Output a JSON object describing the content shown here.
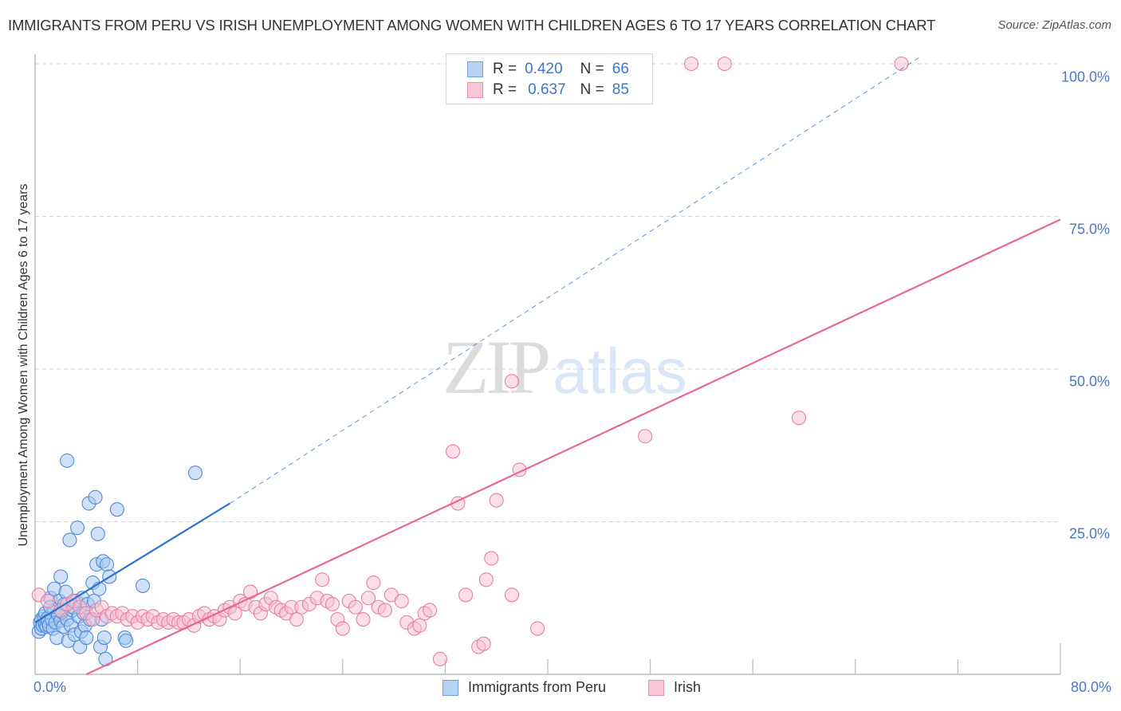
{
  "header": {
    "title": "IMMIGRANTS FROM PERU VS IRISH UNEMPLOYMENT AMONG WOMEN WITH CHILDREN AGES 6 TO 17 YEARS CORRELATION CHART",
    "source": "Source: ZipAtlas.com"
  },
  "watermark": {
    "zip": "ZIP",
    "atlas": "atlas"
  },
  "axes": {
    "ylabel": "Unemployment Among Women with Children Ages 6 to 17 years",
    "y_ticks": [
      "100.0%",
      "75.0%",
      "50.0%",
      "25.0%"
    ],
    "x_ticks": [
      "0.0%",
      "80.0%"
    ]
  },
  "legend": {
    "rows": [
      {
        "r_label": "R =",
        "r_value": "0.420",
        "n_label": "N =",
        "n_value": "66"
      },
      {
        "r_label": "R =",
        "r_value": "0.637",
        "n_label": "N =",
        "n_value": "85"
      }
    ]
  },
  "bottom_legend": {
    "series": [
      {
        "label": "Immigrants from Peru"
      },
      {
        "label": "Irish"
      }
    ]
  },
  "colors": {
    "peru_fill": "#a9c8f0",
    "peru_stroke": "#4f8bd6",
    "peru_line": "#2f73d0",
    "irish_fill": "#f7bfd2",
    "irish_stroke": "#e77fa2",
    "irish_line": "#e86890",
    "tick_label": "#4a78c9",
    "grid": "#d6d6d6"
  },
  "chart_data": {
    "type": "scatter",
    "title": "Immigrants from Peru vs Irish Unemployment Among Women with Children Ages 6 to 17 years Correlation Chart",
    "xlabel": "",
    "ylabel": "Unemployment Among Women with Children Ages 6 to 17 years",
    "xlim": [
      0,
      80
    ],
    "ylim": [
      0,
      100
    ],
    "x_unit": "%",
    "y_unit": "%",
    "grid": {
      "horizontal": true,
      "style": "dashed",
      "y_values": [
        25,
        50,
        75,
        100
      ]
    },
    "legend_position": "top-center (stats) and bottom (series names)",
    "series": [
      {
        "name": "Immigrants from Peru",
        "r": 0.42,
        "n": 66,
        "trend": {
          "x0": 0,
          "y0": 8.5,
          "x1": 15.2,
          "y1": 28.0,
          "dashed_extension_to": [
            69,
            100
          ]
        },
        "points": [
          [
            0.3,
            7.0
          ],
          [
            0.4,
            8.5
          ],
          [
            0.5,
            9.0
          ],
          [
            0.5,
            7.5
          ],
          [
            0.6,
            8.0
          ],
          [
            0.7,
            9.5
          ],
          [
            0.8,
            10.0
          ],
          [
            0.8,
            8.2
          ],
          [
            0.9,
            7.8
          ],
          [
            1.0,
            9.2
          ],
          [
            1.0,
            8.7
          ],
          [
            1.1,
            8.0
          ],
          [
            1.2,
            12.5
          ],
          [
            1.3,
            9.0
          ],
          [
            1.4,
            7.5
          ],
          [
            1.5,
            10.5
          ],
          [
            1.5,
            14.0
          ],
          [
            1.6,
            8.5
          ],
          [
            1.7,
            6.0
          ],
          [
            1.8,
            9.8
          ],
          [
            1.9,
            12.0
          ],
          [
            2.0,
            8.8
          ],
          [
            2.0,
            16.0
          ],
          [
            2.1,
            10.2
          ],
          [
            2.2,
            7.8
          ],
          [
            2.3,
            11.5
          ],
          [
            2.4,
            13.5
          ],
          [
            2.5,
            9.0
          ],
          [
            2.6,
            5.5
          ],
          [
            2.7,
            22.0
          ],
          [
            2.8,
            8.0
          ],
          [
            2.9,
            10.5
          ],
          [
            3.0,
            11.0
          ],
          [
            3.1,
            6.5
          ],
          [
            3.2,
            12.0
          ],
          [
            3.3,
            24.0
          ],
          [
            3.4,
            9.5
          ],
          [
            3.5,
            4.5
          ],
          [
            3.6,
            7.0
          ],
          [
            3.7,
            12.5
          ],
          [
            3.8,
            10.0
          ],
          [
            3.9,
            8.0
          ],
          [
            4.0,
            6.0
          ],
          [
            4.1,
            11.5
          ],
          [
            4.2,
            28.0
          ],
          [
            4.3,
            9.0
          ],
          [
            4.5,
            15.0
          ],
          [
            4.6,
            12.0
          ],
          [
            4.7,
            29.0
          ],
          [
            4.8,
            18.0
          ],
          [
            4.9,
            23.0
          ],
          [
            5.0,
            14.0
          ],
          [
            5.1,
            4.5
          ],
          [
            5.2,
            9.0
          ],
          [
            5.3,
            18.5
          ],
          [
            5.4,
            6.0
          ],
          [
            5.5,
            2.5
          ],
          [
            5.6,
            18.0
          ],
          [
            5.8,
            16.0
          ],
          [
            6.4,
            27.0
          ],
          [
            7.0,
            6.0
          ],
          [
            7.1,
            5.5
          ],
          [
            8.4,
            14.5
          ],
          [
            12.5,
            33.0
          ],
          [
            2.5,
            35.0
          ],
          [
            1.2,
            11.0
          ]
        ]
      },
      {
        "name": "Irish",
        "r": 0.637,
        "n": 85,
        "trend": {
          "x0": 4.0,
          "y0": 0,
          "x1": 80,
          "y1": 74.5
        },
        "points": [
          [
            0.3,
            13.0
          ],
          [
            1.0,
            12.0
          ],
          [
            2.0,
            10.5
          ],
          [
            2.5,
            11.5
          ],
          [
            3.0,
            12.0
          ],
          [
            3.5,
            11.0
          ],
          [
            4.0,
            10.0
          ],
          [
            4.5,
            9.0
          ],
          [
            4.8,
            10.5
          ],
          [
            5.2,
            11.0
          ],
          [
            5.6,
            9.5
          ],
          [
            6.0,
            10.0
          ],
          [
            6.4,
            9.5
          ],
          [
            6.8,
            10.0
          ],
          [
            7.2,
            9.0
          ],
          [
            7.6,
            9.5
          ],
          [
            8.0,
            8.5
          ],
          [
            8.4,
            9.5
          ],
          [
            8.8,
            9.0
          ],
          [
            9.2,
            9.5
          ],
          [
            9.6,
            8.5
          ],
          [
            10.0,
            9.0
          ],
          [
            10.4,
            8.5
          ],
          [
            10.8,
            9.0
          ],
          [
            11.2,
            8.5
          ],
          [
            11.6,
            8.5
          ],
          [
            12.0,
            9.0
          ],
          [
            12.4,
            8.0
          ],
          [
            12.8,
            9.5
          ],
          [
            13.2,
            10.0
          ],
          [
            13.6,
            9.0
          ],
          [
            14.0,
            9.5
          ],
          [
            14.4,
            9.0
          ],
          [
            14.8,
            10.5
          ],
          [
            15.2,
            11.0
          ],
          [
            15.6,
            10.0
          ],
          [
            16.0,
            12.0
          ],
          [
            16.4,
            11.5
          ],
          [
            16.8,
            13.5
          ],
          [
            17.2,
            11.0
          ],
          [
            17.6,
            10.0
          ],
          [
            18.0,
            11.5
          ],
          [
            18.4,
            12.5
          ],
          [
            18.8,
            11.0
          ],
          [
            19.2,
            10.5
          ],
          [
            19.6,
            10.0
          ],
          [
            20.0,
            11.0
          ],
          [
            20.4,
            9.0
          ],
          [
            20.8,
            11.0
          ],
          [
            21.4,
            11.5
          ],
          [
            22.0,
            12.5
          ],
          [
            22.4,
            15.5
          ],
          [
            22.8,
            12.0
          ],
          [
            23.2,
            11.5
          ],
          [
            23.6,
            9.0
          ],
          [
            24.0,
            7.5
          ],
          [
            24.5,
            12.0
          ],
          [
            25.0,
            11.0
          ],
          [
            25.6,
            9.0
          ],
          [
            26.0,
            12.5
          ],
          [
            26.4,
            15.0
          ],
          [
            26.8,
            11.0
          ],
          [
            27.3,
            10.5
          ],
          [
            27.8,
            13.0
          ],
          [
            28.6,
            12.0
          ],
          [
            29.0,
            8.5
          ],
          [
            29.6,
            7.5
          ],
          [
            30.0,
            8.0
          ],
          [
            30.4,
            10.0
          ],
          [
            30.8,
            10.5
          ],
          [
            31.6,
            2.5
          ],
          [
            32.6,
            36.5
          ],
          [
            33.0,
            28.0
          ],
          [
            33.6,
            13.0
          ],
          [
            34.6,
            4.5
          ],
          [
            35.0,
            5.0
          ],
          [
            35.2,
            15.5
          ],
          [
            35.6,
            19.0
          ],
          [
            36.0,
            28.5
          ],
          [
            37.2,
            13.0
          ],
          [
            37.8,
            33.5
          ],
          [
            39.2,
            7.5
          ],
          [
            37.2,
            48.0
          ],
          [
            47.6,
            39.0
          ],
          [
            59.6,
            42.0
          ]
        ],
        "top_points": [
          [
            44.6,
            100
          ],
          [
            51.2,
            100
          ],
          [
            53.8,
            100
          ],
          [
            67.6,
            100
          ]
        ]
      }
    ]
  }
}
